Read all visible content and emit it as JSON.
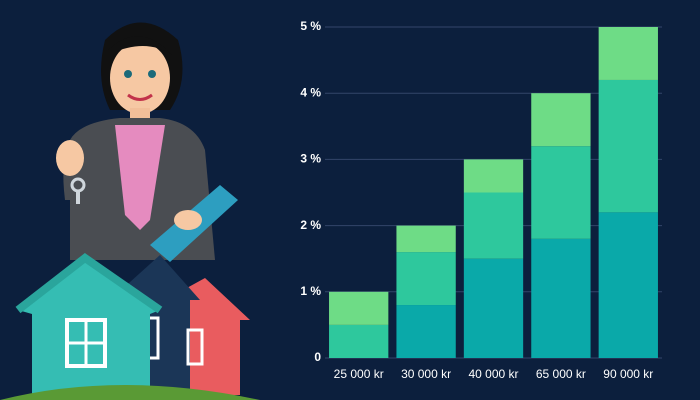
{
  "chart_data": {
    "type": "stacked_bar",
    "categories": [
      "25 000 kr",
      "30 000 kr",
      "40 000 kr",
      "65 000 kr",
      "90 000 kr"
    ],
    "series": [
      {
        "color": "#0aa9a9",
        "values": [
          0,
          0.8,
          1.5,
          1.8,
          2.2
        ]
      },
      {
        "color": "#2ec89d",
        "values": [
          0.5,
          0.8,
          1.0,
          1.4,
          2.0
        ]
      },
      {
        "color": "#6edc86",
        "values": [
          0.5,
          0.4,
          0.5,
          0.8,
          0.8
        ]
      }
    ],
    "ylim": [
      0,
      5
    ],
    "yticks": [
      0,
      {
        "value": 1,
        "label": "1 %"
      },
      {
        "value": 2,
        "label": "2 %"
      },
      {
        "value": 3,
        "label": "3 %"
      },
      {
        "value": 4,
        "label": "4 %"
      },
      {
        "value": 5,
        "label": "5 %"
      }
    ],
    "grid": true
  }
}
